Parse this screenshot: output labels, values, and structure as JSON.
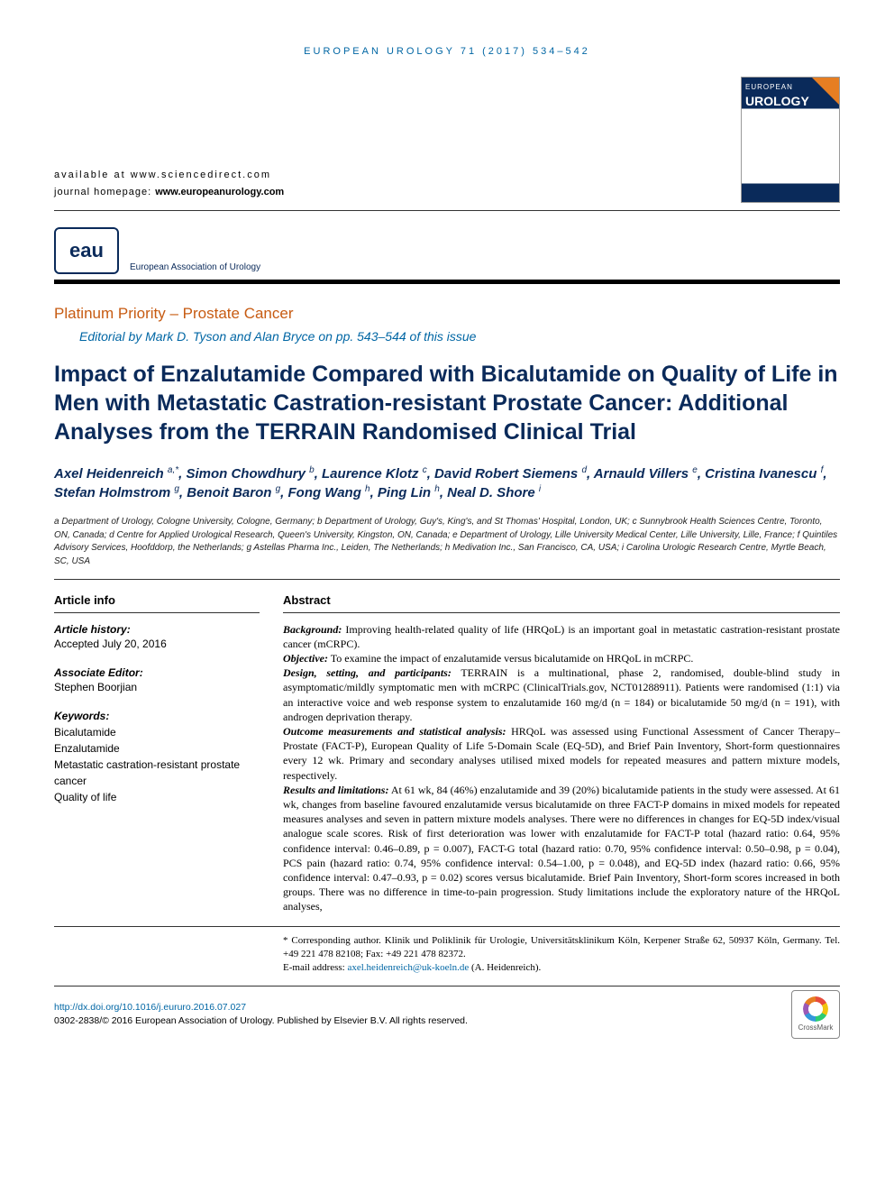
{
  "running_head": "EUROPEAN UROLOGY 71 (2017) 534–542",
  "availability": {
    "line1": "available at www.sciencedirect.com",
    "line2_prefix": "journal homepage:",
    "line2_url": "www.europeanurology.com"
  },
  "publisher_logo": {
    "abbrev": "eau",
    "fullname": "European Association of Urology"
  },
  "cover": {
    "journal_line": "EUROPEAN",
    "journal_bold": "UROLOGY"
  },
  "section": {
    "label": "Platinum Priority – Prostate Cancer",
    "editorial": "Editorial by Mark D. Tyson and Alan Bryce on pp. 543–544 of this issue"
  },
  "title": "Impact of Enzalutamide Compared with Bicalutamide on Quality of Life in Men with Metastatic Castration-resistant Prostate Cancer: Additional Analyses from the TERRAIN Randomised Clinical Trial",
  "authors_html": "Axel Heidenreich <sup>a,*</sup>, Simon Chowdhury <sup>b</sup>, Laurence Klotz <sup>c</sup>, David Robert Siemens <sup>d</sup>, Arnauld Villers <sup>e</sup>, Cristina Ivanescu <sup>f</sup>, Stefan Holmstrom <sup>g</sup>, Benoit Baron <sup>g</sup>, Fong Wang <sup>h</sup>, Ping Lin <sup>h</sup>, Neal D. Shore <sup>i</sup>",
  "affiliations": "a Department of Urology, Cologne University, Cologne, Germany; b Department of Urology, Guy's, King's, and St Thomas' Hospital, London, UK; c Sunnybrook Health Sciences Centre, Toronto, ON, Canada; d Centre for Applied Urological Research, Queen's University, Kingston, ON, Canada; e Department of Urology, Lille University Medical Center, Lille University, Lille, France; f Quintiles Advisory Services, Hoofddorp, the Netherlands; g Astellas Pharma Inc., Leiden, The Netherlands; h Medivation Inc., San Francisco, CA, USA; i Carolina Urologic Research Centre, Myrtle Beach, SC, USA",
  "article_info": {
    "heading": "Article info",
    "history_label": "Article history:",
    "history_value": "Accepted July 20, 2016",
    "assoc_editor_label": "Associate Editor:",
    "assoc_editor_value": "Stephen Boorjian",
    "keywords_label": "Keywords:",
    "keywords": [
      "Bicalutamide",
      "Enzalutamide",
      "Metastatic castration-resistant prostate cancer",
      "Quality of life"
    ]
  },
  "abstract": {
    "heading": "Abstract",
    "background_label": "Background:",
    "background": "Improving health-related quality of life (HRQoL) is an important goal in metastatic castration-resistant prostate cancer (mCRPC).",
    "objective_label": "Objective:",
    "objective": "To examine the impact of enzalutamide versus bicalutamide on HRQoL in mCRPC.",
    "design_label": "Design, setting, and participants:",
    "design": "TERRAIN is a multinational, phase 2, randomised, double-blind study in asymptomatic/mildly symptomatic men with mCRPC (ClinicalTrials.gov, NCT01288911). Patients were randomised (1:1) via an interactive voice and web response system to enzalutamide 160 mg/d (n = 184) or bicalutamide 50 mg/d (n = 191), with androgen deprivation therapy.",
    "outcome_label": "Outcome measurements and statistical analysis:",
    "outcome": "HRQoL was assessed using Functional Assessment of Cancer Therapy–Prostate (FACT-P), European Quality of Life 5-Domain Scale (EQ-5D), and Brief Pain Inventory, Short-form questionnaires every 12 wk. Primary and secondary analyses utilised mixed models for repeated measures and pattern mixture models, respectively.",
    "results_label": "Results and limitations:",
    "results": "At 61 wk, 84 (46%) enzalutamide and 39 (20%) bicalutamide patients in the study were assessed. At 61 wk, changes from baseline favoured enzalutamide versus bicalutamide on three FACT-P domains in mixed models for repeated measures analyses and seven in pattern mixture models analyses. There were no differences in changes for EQ-5D index/visual analogue scale scores. Risk of first deterioration was lower with enzalutamide for FACT-P total (hazard ratio: 0.64, 95% confidence interval: 0.46–0.89, p = 0.007), FACT-G total (hazard ratio: 0.70, 95% confidence interval: 0.50–0.98, p = 0.04), PCS pain (hazard ratio: 0.74, 95% confidence interval: 0.54–1.00, p = 0.048), and EQ-5D index (hazard ratio: 0.66, 95% confidence interval: 0.47–0.93, p = 0.02) scores versus bicalutamide. Brief Pain Inventory, Short-form scores increased in both groups. There was no difference in time-to-pain progression. Study limitations include the exploratory nature of the HRQoL analyses,"
  },
  "corresponding": {
    "text": "* Corresponding author. Klinik und Poliklinik für Urologie, Universitätsklinikum Köln, Kerpener Straße 62, 50937 Köln, Germany. Tel. +49 221 478 82108; Fax: +49 221 478 82372.",
    "email_label": "E-mail address:",
    "email": "axel.heidenreich@uk-koeln.de",
    "email_suffix": "(A. Heidenreich)."
  },
  "footer": {
    "doi": "http://dx.doi.org/10.1016/j.eururo.2016.07.027",
    "copyright": "0302-2838/© 2016 European Association of Urology. Published by Elsevier B.V. All rights reserved.",
    "crossmark": "CrossMark"
  },
  "colors": {
    "brand_blue": "#0a2a5a",
    "link_blue": "#0066a4",
    "section_orange": "#c75b12"
  }
}
